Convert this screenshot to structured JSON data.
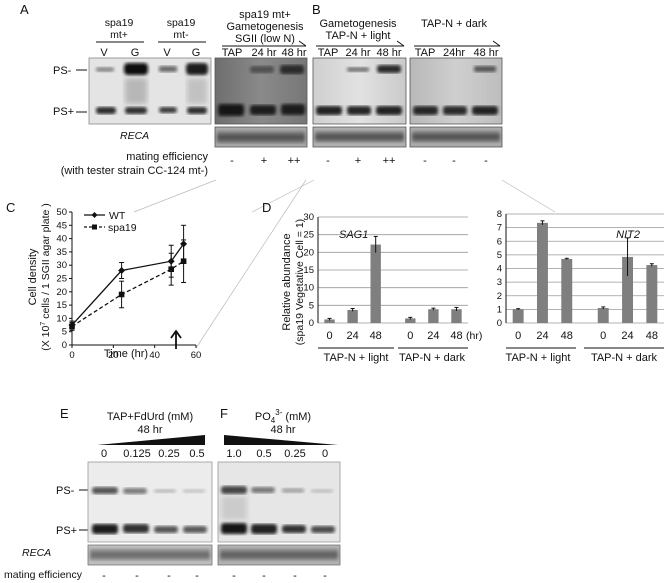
{
  "panels": {
    "A": {
      "letter": "A",
      "strain_mt_plus": [
        "spa19",
        "mt+"
      ],
      "strain_mt_minus": [
        "spa19",
        "mt-"
      ],
      "lanes": [
        "V",
        "G",
        "V",
        "G"
      ],
      "gameto_title": [
        "spa19 mt+",
        "Gametogenesis",
        "SGII (low N)"
      ],
      "time_lanes": [
        "TAP",
        "24 hr",
        "48 hr"
      ],
      "band_upper": "PS-",
      "band_lower": "PS+",
      "reca": "RECA",
      "mating_label": "mating efficiency",
      "tester_label": "(with tester strain CC-124 mt-)",
      "mating_values": [
        "-",
        "+",
        "++"
      ]
    },
    "B": {
      "letter": "B",
      "light_title": [
        "Gametogenesis",
        "TAP-N + light"
      ],
      "dark_title": "TAP-N  + dark",
      "light_lanes": [
        "TAP",
        "24 hr",
        "48 hr"
      ],
      "dark_lanes": [
        "TAP",
        "24hr",
        "48 hr"
      ],
      "mating_light": [
        "-",
        "+",
        "++"
      ],
      "mating_dark": [
        "-",
        "-",
        "-"
      ]
    },
    "C": {
      "letter": "C",
      "ylabel": [
        "Cell density",
        "(X 10^7 cells / 1 SGII agar plate )"
      ],
      "ylabel_parts": {
        "prefix": "(X 10",
        "exp": "7",
        "suffix": " cells / 1 SGII agar plate )"
      },
      "xlabel": "Time (hr)",
      "legend": [
        "WT",
        "spa19"
      ]
    },
    "D": {
      "letter": "D",
      "ylabel": [
        "Relative abundance",
        "(spa19 Vegetative Cell = 1)"
      ],
      "gene_left": "SAG1",
      "gene_right": "NIT2",
      "x_ticks": [
        "0",
        "24",
        "48",
        "0",
        "24",
        "48"
      ],
      "unit": "(hr)",
      "group_light": "TAP-N + light",
      "group_dark": "TAP-N + dark"
    },
    "E": {
      "letter": "E",
      "title": [
        "TAP+FdUrd (mM)",
        "48 hr"
      ],
      "concentrations": [
        "0",
        "0.125",
        "0.25",
        "0.5"
      ],
      "band_upper": "PS-",
      "band_lower": "PS+",
      "reca": "RECA",
      "mating_label": "mating efficiency",
      "mating_values": [
        "-",
        "-",
        "-",
        "-"
      ]
    },
    "F": {
      "letter": "F",
      "title_parts": {
        "chem": "PO",
        "sub": "4",
        "sup": "3-",
        "unit": " (mM)"
      },
      "title_time": "48 hr",
      "concentrations": [
        "1.0",
        "0.5",
        "0.25",
        "0"
      ],
      "mating_values": [
        "-",
        "-",
        "-",
        "-"
      ]
    }
  },
  "chart_data": [
    {
      "type": "line",
      "title": "",
      "xlabel": "Time (hr)",
      "ylabel": "Cell density (X 10^7 cells / 1 SGII agar plate )",
      "xlim": [
        0,
        60
      ],
      "ylim": [
        0,
        50
      ],
      "x_ticks": [
        0,
        20,
        40,
        60
      ],
      "y_ticks": [
        0,
        5,
        10,
        15,
        20,
        25,
        30,
        35,
        40,
        45,
        50
      ],
      "legend": "top-left",
      "series": [
        {
          "name": "WT",
          "style": "solid",
          "marker": "diamond",
          "x": [
            0,
            24,
            48,
            54
          ],
          "y": [
            7.5,
            28,
            31.5,
            38
          ],
          "err": [
            1.5,
            3,
            6,
            7
          ]
        },
        {
          "name": "spa19",
          "style": "dashed",
          "marker": "square",
          "x": [
            0,
            24,
            48,
            54
          ],
          "y": [
            7,
            19,
            28.5,
            31.5
          ],
          "err": [
            1.5,
            5,
            6,
            8
          ]
        }
      ]
    },
    {
      "type": "bar",
      "title": "SAG1",
      "ylabel": "Relative abundance (spa19 Vegetative Cell = 1)",
      "ylim": [
        0,
        30
      ],
      "y_ticks": [
        0,
        5,
        10,
        15,
        20,
        25,
        30
      ],
      "grid": true,
      "categories": [
        "0",
        "24",
        "48",
        "0",
        "24",
        "48"
      ],
      "groups": [
        "TAP-N + light",
        "TAP-N + light",
        "TAP-N + light",
        "TAP-N + dark",
        "TAP-N + dark",
        "TAP-N + dark"
      ],
      "values": [
        1.0,
        3.7,
        22.2,
        1.3,
        3.9,
        3.9
      ],
      "err": [
        0.3,
        0.4,
        2.3,
        0.3,
        0.3,
        0.5
      ],
      "color": "#7f7f7f"
    },
    {
      "type": "bar",
      "title": "NIT2",
      "ylim": [
        0,
        8
      ],
      "y_ticks": [
        0,
        1,
        2,
        3,
        4,
        5,
        6,
        7,
        8
      ],
      "grid": true,
      "categories": [
        "0",
        "24",
        "48",
        "0",
        "24",
        "48"
      ],
      "groups": [
        "TAP-N + light",
        "TAP-N + light",
        "TAP-N + light",
        "TAP-N + dark",
        "TAP-N + dark",
        "TAP-N + dark"
      ],
      "values": [
        1.0,
        7.35,
        4.7,
        1.1,
        4.85,
        4.25
      ],
      "err": [
        0.05,
        0.15,
        0.05,
        0.08,
        1.4,
        0.1
      ],
      "color": "#7f7f7f"
    }
  ]
}
